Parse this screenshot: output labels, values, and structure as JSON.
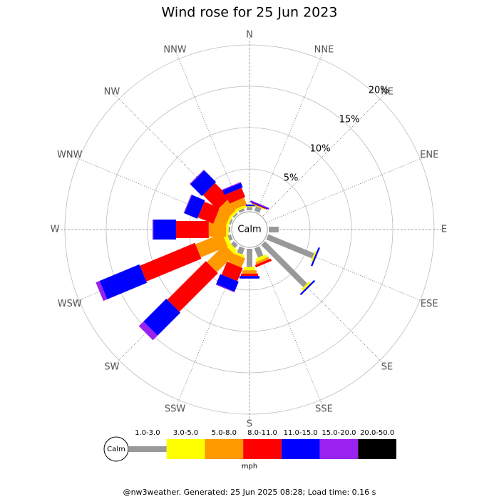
{
  "chart_data": {
    "type": "wind-rose",
    "title": "Wind rose for 25 Jun 2023",
    "calm_label": "Calm",
    "unit": "mph",
    "footer": "@nw3weather. Generated: 25 Jun 2025 08:28; Load time: 0.16 s",
    "categories": [
      "N",
      "NNE",
      "NE",
      "ENE",
      "E",
      "ESE",
      "SE",
      "SSE",
      "S",
      "SSW",
      "SW",
      "WSW",
      "W",
      "WNW",
      "NW",
      "NNW"
    ],
    "rlim": [
      0,
      20
    ],
    "rticks": [
      {
        "value": 5,
        "label": "5%"
      },
      {
        "value": 10,
        "label": "10%"
      },
      {
        "value": 15,
        "label": "15%"
      },
      {
        "value": 20,
        "label": "20%"
      }
    ],
    "series": [
      {
        "name": "1.0-3.0",
        "color": "#999999",
        "values": [
          0.4,
          0.6,
          0,
          0,
          1.2,
          6.0,
          7.2,
          1.2,
          2.2,
          0.8,
          0.5,
          0.4,
          0.2,
          0.2,
          0.2,
          0.3
        ]
      },
      {
        "name": "3.0-5.0",
        "color": "#ffff00",
        "values": [
          0.1,
          0.1,
          0,
          0,
          0,
          0.2,
          0.3,
          0.4,
          0.4,
          0.3,
          0.6,
          0.5,
          0.3,
          0.3,
          0.3,
          0.3
        ]
      },
      {
        "name": "5.0-8.0",
        "color": "#ff9900",
        "values": [
          0,
          0,
          0,
          0,
          0,
          0,
          0,
          0.3,
          0.4,
          1.2,
          3.0,
          3.5,
          2.1,
          1.5,
          1.6,
          0.9
        ]
      },
      {
        "name": "8.0-11.0",
        "color": "#ff0000",
        "values": [
          0,
          0.1,
          0,
          0,
          0,
          0,
          0,
          0.3,
          0.3,
          1.7,
          6.6,
          7.2,
          3.95,
          2.0,
          2.5,
          1.2
        ]
      },
      {
        "name": "11.0-15.0",
        "color": "#0000ff",
        "values": [
          0.2,
          0.1,
          0,
          0,
          0,
          0.2,
          0.2,
          0,
          0.3,
          1.3,
          3.9,
          5.2,
          2.75,
          1.7,
          2.0,
          0.6
        ]
      },
      {
        "name": "15.0-20.0",
        "color": "#9922ee",
        "values": [
          0,
          0.1,
          0,
          0,
          0,
          0,
          0,
          0,
          0,
          0.1,
          0.8,
          0.5,
          0.1,
          0.1,
          0.1,
          0.1
        ]
      },
      {
        "name": "20.0-50.0",
        "color": "#000000",
        "values": [
          0,
          0,
          0,
          0,
          0,
          0,
          0,
          0,
          0,
          0,
          0,
          0,
          0,
          0,
          0,
          0
        ]
      }
    ]
  }
}
